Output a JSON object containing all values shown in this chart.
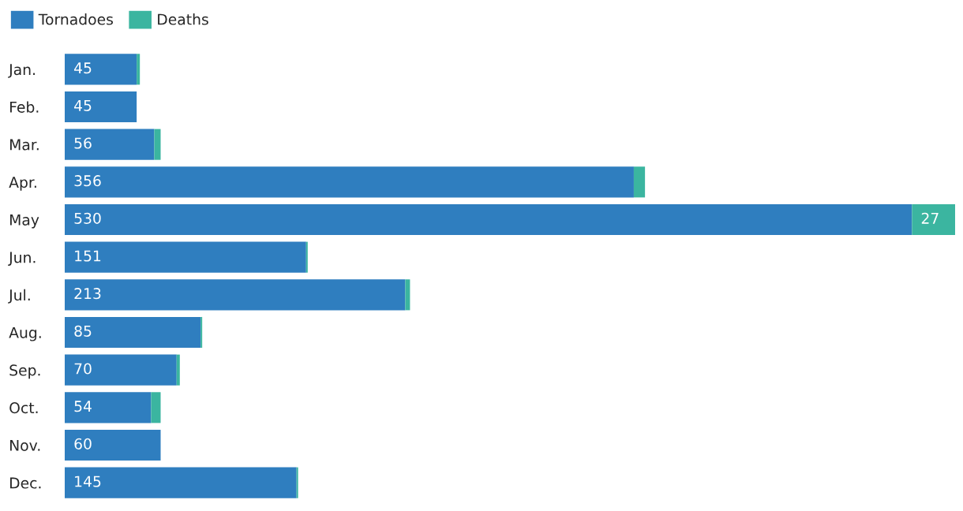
{
  "chart_data": {
    "type": "bar",
    "orientation": "horizontal",
    "stacked": true,
    "legend": "top left",
    "grid": false,
    "tick_labels": "y",
    "categories": [
      "Jan.",
      "Feb.",
      "Mar.",
      "Apr.",
      "May",
      "Jun.",
      "Jul.",
      "Aug.",
      "Sep.",
      "Oct.",
      "Nov.",
      "Dec."
    ],
    "series": [
      {
        "name": "Tornadoes",
        "color": "#2f7ebf",
        "values": [
          45,
          45,
          56,
          356,
          530,
          151,
          213,
          85,
          70,
          54,
          60,
          145
        ],
        "value_labels": [
          "45",
          "45",
          "56",
          "356",
          "530",
          "151",
          "213",
          "85",
          "70",
          "54",
          "60",
          "145"
        ]
      },
      {
        "name": "Deaths",
        "color": "#3bb5a0",
        "values": [
          2,
          0,
          4,
          7,
          27,
          1,
          3,
          1,
          2,
          6,
          0,
          1
        ],
        "value_labels": [
          null,
          null,
          null,
          null,
          "27",
          null,
          null,
          null,
          null,
          null,
          null,
          null
        ]
      }
    ]
  }
}
